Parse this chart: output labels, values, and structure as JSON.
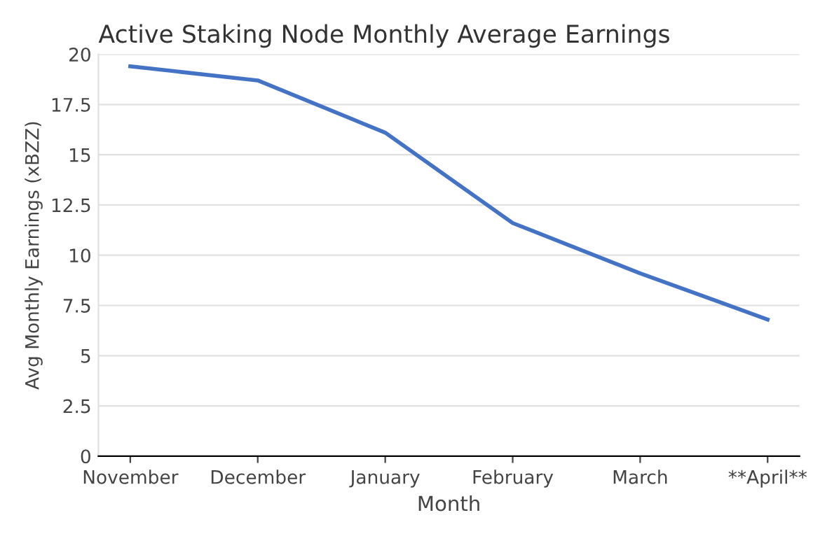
{
  "chart_data": {
    "type": "line",
    "title": "Active Staking Node Monthly Average Earnings",
    "xlabel": "Month",
    "ylabel": "Avg Monthly Earnings (xBZZ)",
    "categories": [
      "November",
      "December",
      "January",
      "February",
      "March",
      "**April**"
    ],
    "series": [
      {
        "color": "#4472c4",
        "values": [
          19.4,
          18.7,
          16.1,
          11.6,
          9.1,
          6.8
        ]
      }
    ],
    "ylim": [
      0,
      20
    ],
    "yticks": [
      0,
      2.5,
      5,
      7.5,
      10,
      12.5,
      15,
      17.5,
      20
    ],
    "grid": "y",
    "line_style": "solid"
  }
}
